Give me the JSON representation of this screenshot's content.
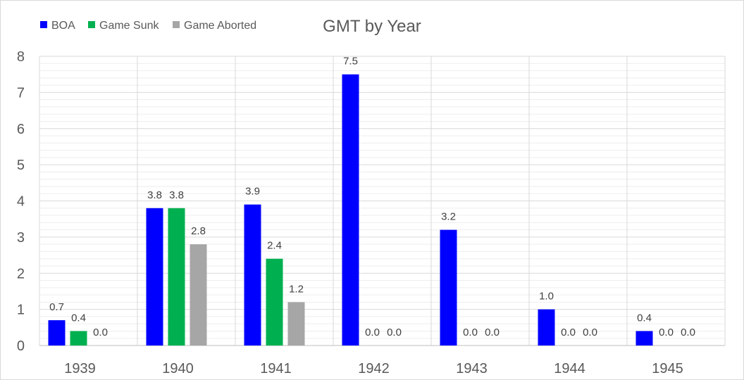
{
  "chart_data": {
    "type": "bar",
    "title": "GMT by Year",
    "categories": [
      "1939",
      "1940",
      "1941",
      "1942",
      "1943",
      "1944",
      "1945"
    ],
    "series": [
      {
        "name": "BOA",
        "color": "#0000ff",
        "values": [
          0.7,
          3.8,
          3.9,
          7.5,
          3.2,
          1.0,
          0.4
        ],
        "labels": [
          "0.7",
          "3.8",
          "3.9",
          "7.5",
          "3.2",
          "1.0",
          "0.4"
        ]
      },
      {
        "name": "Game Sunk",
        "color": "#00b050",
        "values": [
          0.4,
          3.8,
          2.4,
          0.0,
          0.0,
          0.0,
          0.0
        ],
        "labels": [
          "0.4",
          "3.8",
          "2.4",
          "0.0",
          "0.0",
          "0.0",
          "0.0"
        ]
      },
      {
        "name": "Game Aborted",
        "color": "#a6a6a6",
        "values": [
          0.0,
          2.8,
          1.2,
          0.0,
          0.0,
          0.0,
          0.0
        ],
        "labels": [
          "0.0",
          "2.8",
          "1.2",
          "0.0",
          "0.0",
          "0.0",
          "0.0"
        ]
      }
    ],
    "ylim": [
      0,
      8
    ],
    "yticks": [
      "0",
      "1",
      "2",
      "3",
      "4",
      "5",
      "6",
      "7",
      "8"
    ],
    "xlabel": "",
    "ylabel": "",
    "legend": "top-left",
    "grid": true,
    "gridline_color": "#d9d9d9"
  }
}
